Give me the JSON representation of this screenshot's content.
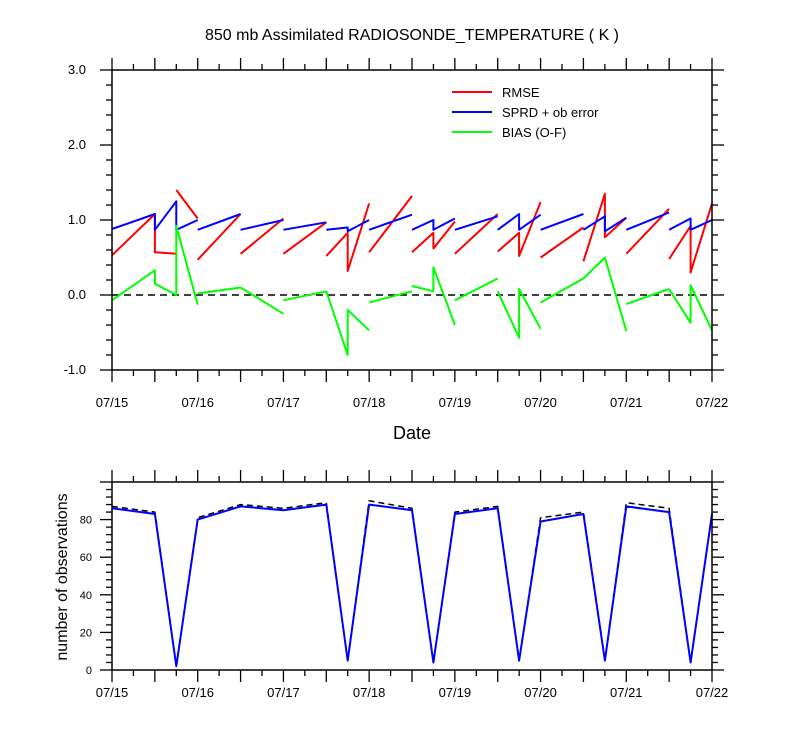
{
  "chart_data": [
    {
      "type": "line",
      "title": "850 mb Assimilated RADIOSONDE_TEMPERATURE ( K )",
      "xlabel": "Date",
      "ylabel": "",
      "xlim": [
        0,
        7
      ],
      "ylim": [
        -1.0,
        3.0
      ],
      "x_ticks": [
        "07/15",
        "07/16",
        "07/17",
        "07/18",
        "07/19",
        "07/20",
        "07/21",
        "07/22"
      ],
      "y_ticks": [
        "-1.0",
        "0.0",
        "1.0",
        "2.0",
        "3.0"
      ],
      "legend_position": "top-right",
      "reference_line": {
        "y": 0.0,
        "style": "dashed",
        "color": "#000000"
      },
      "series": [
        {
          "name": "RMSE",
          "color": "#ff0000",
          "segments": [
            [
              [
                0.0,
                0.53
              ],
              [
                0.5,
                1.08
              ],
              [
                0.5,
                0.57
              ],
              [
                0.75,
                0.55
              ]
            ],
            [
              [
                0.75,
                1.4
              ],
              [
                1.0,
                1.02
              ]
            ],
            [
              [
                1.0,
                0.47
              ],
              [
                1.5,
                1.08
              ]
            ],
            [
              [
                1.5,
                0.55
              ],
              [
                2.0,
                1.02
              ]
            ],
            [
              [
                2.0,
                0.55
              ],
              [
                2.5,
                0.97
              ]
            ],
            [
              [
                2.5,
                0.52
              ],
              [
                2.75,
                0.83
              ],
              [
                2.75,
                0.32
              ],
              [
                3.0,
                1.22
              ]
            ],
            [
              [
                3.0,
                0.57
              ],
              [
                3.5,
                1.32
              ]
            ],
            [
              [
                3.5,
                0.57
              ],
              [
                3.75,
                0.83
              ],
              [
                3.75,
                0.62
              ],
              [
                4.0,
                0.98
              ]
            ],
            [
              [
                4.0,
                0.55
              ],
              [
                4.5,
                1.08
              ]
            ],
            [
              [
                4.5,
                0.58
              ],
              [
                4.75,
                0.83
              ],
              [
                4.75,
                0.52
              ],
              [
                5.0,
                1.24
              ]
            ],
            [
              [
                5.0,
                0.5
              ],
              [
                5.5,
                0.9
              ]
            ],
            [
              [
                5.5,
                0.45
              ],
              [
                5.75,
                1.35
              ],
              [
                5.75,
                0.77
              ],
              [
                6.0,
                1.03
              ]
            ],
            [
              [
                6.0,
                0.55
              ],
              [
                6.5,
                1.15
              ]
            ],
            [
              [
                6.5,
                0.48
              ],
              [
                6.75,
                0.92
              ],
              [
                6.75,
                0.3
              ],
              [
                7.0,
                1.22
              ]
            ]
          ]
        },
        {
          "name": "SPRD + ob error",
          "color": "#0000ff",
          "segments": [
            [
              [
                0.0,
                0.88
              ],
              [
                0.5,
                1.08
              ],
              [
                0.5,
                0.87
              ],
              [
                0.75,
                1.25
              ],
              [
                0.75,
                0.87
              ],
              [
                1.0,
                1.0
              ]
            ],
            [
              [
                1.0,
                0.87
              ],
              [
                1.5,
                1.08
              ]
            ],
            [
              [
                1.5,
                0.87
              ],
              [
                2.0,
                1.0
              ]
            ],
            [
              [
                2.0,
                0.87
              ],
              [
                2.5,
                0.97
              ]
            ],
            [
              [
                2.5,
                0.87
              ],
              [
                2.75,
                0.9
              ],
              [
                2.75,
                0.85
              ],
              [
                3.0,
                1.0
              ]
            ],
            [
              [
                3.0,
                0.87
              ],
              [
                3.5,
                1.07
              ]
            ],
            [
              [
                3.5,
                0.87
              ],
              [
                3.75,
                1.0
              ],
              [
                3.75,
                0.87
              ],
              [
                4.0,
                1.02
              ]
            ],
            [
              [
                4.0,
                0.87
              ],
              [
                4.5,
                1.05
              ]
            ],
            [
              [
                4.5,
                0.87
              ],
              [
                4.75,
                1.08
              ],
              [
                4.75,
                0.87
              ],
              [
                5.0,
                1.07
              ]
            ],
            [
              [
                5.0,
                0.87
              ],
              [
                5.5,
                1.08
              ]
            ],
            [
              [
                5.5,
                0.87
              ],
              [
                5.75,
                1.05
              ],
              [
                5.75,
                0.85
              ],
              [
                6.0,
                1.03
              ]
            ],
            [
              [
                6.0,
                0.87
              ],
              [
                6.5,
                1.1
              ]
            ],
            [
              [
                6.5,
                0.87
              ],
              [
                6.75,
                1.02
              ],
              [
                6.75,
                0.87
              ],
              [
                7.0,
                1.0
              ]
            ]
          ]
        },
        {
          "name": "BIAS (O-F)",
          "color": "#00ff00",
          "segments": [
            [
              [
                0.0,
                -0.07
              ],
              [
                0.5,
                0.33
              ],
              [
                0.5,
                0.15
              ],
              [
                0.75,
                0.0
              ],
              [
                0.75,
                0.92
              ],
              [
                1.0,
                -0.13
              ]
            ],
            [
              [
                1.0,
                0.02
              ],
              [
                1.5,
                0.1
              ]
            ],
            [
              [
                1.5,
                0.1
              ],
              [
                2.0,
                -0.25
              ]
            ],
            [
              [
                2.0,
                -0.07
              ],
              [
                2.5,
                0.05
              ]
            ],
            [
              [
                2.5,
                0.05
              ],
              [
                2.75,
                -0.8
              ],
              [
                2.75,
                -0.2
              ],
              [
                3.0,
                -0.47
              ]
            ],
            [
              [
                3.0,
                -0.1
              ],
              [
                3.5,
                0.05
              ]
            ],
            [
              [
                3.5,
                0.12
              ],
              [
                3.75,
                0.05
              ],
              [
                3.75,
                0.37
              ],
              [
                4.0,
                -0.4
              ]
            ],
            [
              [
                4.0,
                -0.07
              ],
              [
                4.5,
                0.22
              ]
            ],
            [
              [
                4.5,
                0.05
              ],
              [
                4.75,
                -0.57
              ],
              [
                4.75,
                0.08
              ],
              [
                5.0,
                -0.45
              ]
            ],
            [
              [
                5.0,
                -0.1
              ],
              [
                5.5,
                0.22
              ]
            ],
            [
              [
                5.5,
                0.22
              ],
              [
                5.75,
                0.5
              ],
              [
                5.75,
                0.5
              ],
              [
                6.0,
                -0.48
              ]
            ],
            [
              [
                6.0,
                -0.12
              ],
              [
                6.5,
                0.08
              ]
            ],
            [
              [
                6.5,
                0.08
              ],
              [
                6.75,
                -0.37
              ],
              [
                6.75,
                0.13
              ],
              [
                7.0,
                -0.47
              ]
            ]
          ]
        }
      ]
    },
    {
      "type": "line",
      "title": "",
      "xlabel": "",
      "ylabel": "number of observations",
      "xlim": [
        0,
        7
      ],
      "ylim": [
        0,
        100
      ],
      "x_ticks": [
        "07/15",
        "07/16",
        "07/17",
        "07/18",
        "07/19",
        "07/20",
        "07/21",
        "07/22"
      ],
      "y_ticks": [
        "0",
        "20",
        "40",
        "60",
        "80"
      ],
      "series": [
        {
          "color": "#000000",
          "style": "dashed",
          "points": [
            [
              0.0,
              87
            ],
            [
              0.5,
              84
            ],
            [
              0.75,
              2
            ],
            [
              1.0,
              81
            ],
            [
              1.5,
              88
            ],
            [
              2.0,
              86
            ],
            [
              2.5,
              89
            ],
            [
              2.75,
              5
            ],
            [
              3.0,
              90
            ],
            [
              3.5,
              86
            ],
            [
              3.75,
              4
            ],
            [
              4.0,
              84
            ],
            [
              4.5,
              87
            ],
            [
              4.75,
              5
            ],
            [
              5.0,
              81
            ],
            [
              5.5,
              84
            ],
            [
              5.75,
              5
            ],
            [
              6.0,
              89
            ],
            [
              6.5,
              86
            ],
            [
              6.75,
              4
            ],
            [
              7.0,
              83
            ]
          ]
        },
        {
          "color": "#0000ff",
          "style": "solid",
          "points": [
            [
              0.0,
              86
            ],
            [
              0.5,
              83
            ],
            [
              0.75,
              2
            ],
            [
              1.0,
              80
            ],
            [
              1.5,
              87
            ],
            [
              2.0,
              85
            ],
            [
              2.5,
              88
            ],
            [
              2.75,
              5
            ],
            [
              3.0,
              88
            ],
            [
              3.5,
              85
            ],
            [
              3.75,
              4
            ],
            [
              4.0,
              83
            ],
            [
              4.5,
              86
            ],
            [
              4.75,
              5
            ],
            [
              5.0,
              79
            ],
            [
              5.5,
              83
            ],
            [
              5.75,
              5
            ],
            [
              6.0,
              87
            ],
            [
              6.5,
              84
            ],
            [
              6.75,
              4
            ],
            [
              7.0,
              83
            ]
          ]
        }
      ]
    }
  ]
}
